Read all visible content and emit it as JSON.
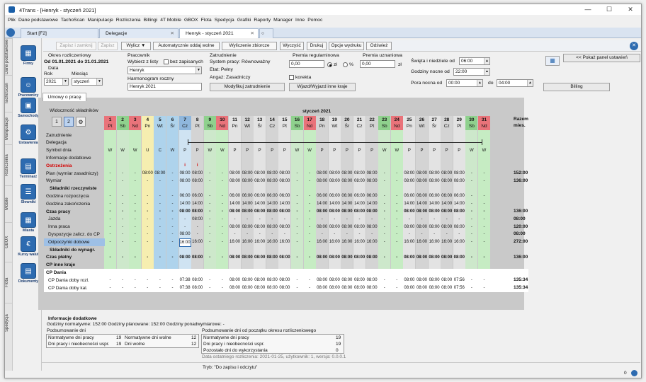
{
  "window": {
    "title": "4Trans - [Henryk - styczeń 2021]"
  },
  "menu": [
    "Plik",
    "Dane podstawowe",
    "TachoScan",
    "Manipulacje",
    "Rozliczenia",
    "Billingi",
    "4T Mobile",
    "GBOX",
    "Flota",
    "Spedycja",
    "Grafiki",
    "Raporty",
    "Manager",
    "Inne",
    "Pomoc"
  ],
  "tabs": [
    "Start [F2]",
    "Delegacje",
    "Henryk - styczeń 2021"
  ],
  "vtabs": [
    "Dane podstawowe",
    "TachoScan",
    "Manipulacje",
    "Rozliczenia",
    "Mobile",
    "GBOX",
    "Flota",
    "Spedycja"
  ],
  "nav": [
    "Firmy",
    "Pracownicy",
    "Samochody",
    "Ustawienia",
    "Terminarz",
    "Słowniki",
    "Miasta",
    "Kursy walut",
    "Dokumenty"
  ],
  "toolbar": {
    "save_close": "Zapisz i zamknij",
    "save": "Zapisz",
    "wylicz": "Wylicz",
    "auto_free": "Automatycznie oddaj wolne",
    "bulk_calc": "Wyliczenie zbiorcze",
    "clear": "Wyczyść",
    "print": "Drukuj",
    "print_opts": "Opcje wydruku",
    "refresh": "Odśwież"
  },
  "header": {
    "okres_title": "Okres rozliczeniowy",
    "okres_range": "Od 01.01.2021  do  31.01.2021",
    "data_label": "Data",
    "rok_label": "Rok",
    "rok_value": "2021",
    "miesiac_label": "Miesiąc",
    "miesiac_value": "styczeń",
    "pracownik_title": "Pracownik",
    "wybierz_label": "Wybierz z listy",
    "bez_zapisanych": "bez zapisanych",
    "pracownik_value": "Henryk",
    "harmonogram_label": "Harmonogram roczny",
    "harmonogram_value": "Henryk     2021",
    "zatr_title": "Zatrudnienie",
    "system_pracy": "System pracy: Równoważny",
    "etat": "Etat: Pełny",
    "angaz": "Angaż: Zasadniczy",
    "modyfikuj": "Modyfikuj zatrudnienie",
    "premia_reg_title": "Premia regulaminowa",
    "premia_reg_value": "0,00",
    "zl1": "zł",
    "pct": "%",
    "premia_uzn_title": "Premia uznaniowa",
    "premia_uzn_value": "0,00",
    "zl2": "zł",
    "korekta": "korekta",
    "wyjazd": "Wjazd/Wyjazd inne kraje",
    "swieta_label": "Święta i niedziele od",
    "swieta_value": "06:00",
    "nocne_label": "Godziny nocne od",
    "nocne_value": "22:00",
    "pora_label": "Pora nocna od",
    "pora_from": "00:00",
    "do_label": "do",
    "pora_to": "04:00",
    "pokaz_panel": "<< Pokaż panel ustawień",
    "billing": "Billing"
  },
  "subtab": "Umowy o pracę",
  "grid": {
    "widocznosc": "Widoczność składników",
    "vis_btn1": "1",
    "vis_btn2": "2",
    "month_label": "styczeń 2021",
    "razem": "Razem",
    "mies": "mies.",
    "days": [
      "1",
      "2",
      "3",
      "4",
      "5",
      "6",
      "7",
      "8",
      "9",
      "10",
      "11",
      "12",
      "13",
      "14",
      "15",
      "16",
      "17",
      "18",
      "19",
      "20",
      "21",
      "22",
      "23",
      "24",
      "25",
      "26",
      "27",
      "28",
      "29",
      "30",
      "31"
    ],
    "dows": [
      "Pt",
      "Sb",
      "Nd",
      "Pn",
      "Wt",
      "Śr",
      "Cz",
      "Pt",
      "Sb",
      "Nd",
      "Pn",
      "Wt",
      "Śr",
      "Cz",
      "Pt",
      "Sb",
      "Nd",
      "Pn",
      "Wt",
      "Śr",
      "Cz",
      "Pt",
      "Sb",
      "Nd",
      "Pn",
      "Wt",
      "Śr",
      "Cz",
      "Pt",
      "Sb",
      "Nd"
    ],
    "rows": [
      {
        "label": "Zatrudnienie",
        "bold": false
      },
      {
        "label": "Delegacja",
        "bold": false
      },
      {
        "label": "Symbol dnia",
        "bold": false,
        "cells": [
          "W",
          "W",
          "W",
          "U",
          "C",
          "W",
          "P",
          "P",
          "W",
          "W",
          "P",
          "P",
          "P",
          "P",
          "P",
          "W",
          "W",
          "P",
          "P",
          "P",
          "P",
          "P",
          "W",
          "W",
          "P",
          "P",
          "P",
          "P",
          "P",
          "W",
          "W"
        ]
      },
      {
        "label": "Informacje dodatkowe",
        "bold": false
      },
      {
        "label": "Ostrzeżenia",
        "bold": true,
        "red": true,
        "cells": [
          "",
          "",
          "",
          "",
          "",
          "",
          "i",
          "i",
          "",
          "",
          "",
          "",
          "",
          "",
          "",
          "",
          "",
          "",
          "",
          "",
          "",
          "",
          "",
          "",
          "",
          "",
          "",
          "",
          "",
          "",
          ""
        ]
      },
      {
        "label": "Plan (wymiar zasadniczy)",
        "bold": false,
        "cells": [
          "-",
          "-",
          "-",
          "08:00",
          "08:00",
          "-",
          "08:00",
          "08:00",
          "-",
          "-",
          "08:00",
          "08:00",
          "08:00",
          "08:00",
          "08:00",
          "-",
          "-",
          "08:00",
          "08:00",
          "08:00",
          "08:00",
          "08:00",
          "-",
          "-",
          "08:00",
          "08:00",
          "08:00",
          "08:00",
          "08:00",
          "-",
          "-"
        ],
        "total": "152:00"
      },
      {
        "label": "Wymiar",
        "bold": false,
        "cells": [
          "-",
          "-",
          "-",
          "-",
          "-",
          "-",
          "08:00",
          "08:00",
          "-",
          "-",
          "08:00",
          "08:00",
          "08:00",
          "08:00",
          "08:00",
          "-",
          "-",
          "08:00",
          "08:00",
          "08:00",
          "08:00",
          "08:00",
          "-",
          "-",
          "08:00",
          "08:00",
          "08:00",
          "08:00",
          "08:00",
          "-",
          "-"
        ],
        "total": "136:00"
      },
      {
        "label": "Składniki rzeczywiste",
        "bold": true,
        "indent": true
      },
      {
        "label": "Godzina rozpoczęcia",
        "bold": false,
        "cells": [
          "-",
          "-",
          "-",
          "-",
          "-",
          "-",
          "06:00",
          "06:00",
          "-",
          "-",
          "06:00",
          "06:00",
          "06:00",
          "06:00",
          "06:00",
          "-",
          "-",
          "06:00",
          "06:00",
          "06:00",
          "06:00",
          "06:00",
          "-",
          "-",
          "06:00",
          "06:00",
          "06:00",
          "06:00",
          "06:00",
          "-",
          "-"
        ]
      },
      {
        "label": "Godzina zakończenia",
        "bold": false,
        "cells": [
          "-",
          "-",
          "-",
          "-",
          "-",
          "-",
          "14:00",
          "14:00",
          "-",
          "-",
          "14:00",
          "14:00",
          "14:00",
          "14:00",
          "14:00",
          "-",
          "-",
          "14:00",
          "14:00",
          "14:00",
          "14:00",
          "14:00",
          "-",
          "-",
          "14:00",
          "14:00",
          "14:00",
          "14:00",
          "14:00",
          "-",
          "-"
        ]
      },
      {
        "label": "Czas pracy",
        "bold": true,
        "cells": [
          "-",
          "-",
          "-",
          "-",
          "-",
          "-",
          "08:00",
          "08:00",
          "-",
          "-",
          "08:00",
          "08:00",
          "08:00",
          "08:00",
          "08:00",
          "-",
          "-",
          "08:00",
          "08:00",
          "08:00",
          "08:00",
          "08:00",
          "-",
          "-",
          "08:00",
          "08:00",
          "08:00",
          "08:00",
          "08:00",
          "-",
          "-"
        ],
        "total": "136:00"
      },
      {
        "label": "Jazda",
        "bold": false,
        "sub": true,
        "cells": [
          "-",
          "-",
          "-",
          "-",
          "-",
          "-",
          "-",
          "08:00",
          "-",
          "-",
          "-",
          "-",
          "-",
          "-",
          "-",
          "-",
          "-",
          "-",
          "-",
          "-",
          "-",
          "-",
          "-",
          "-",
          "-",
          "-",
          "-",
          "-",
          "-",
          "-",
          "-"
        ],
        "total": "08:00"
      },
      {
        "label": "Inna praca",
        "bold": false,
        "sub": true,
        "cells": [
          "-",
          "-",
          "-",
          "-",
          "-",
          "-",
          "-",
          "-",
          "-",
          "-",
          "08:00",
          "08:00",
          "08:00",
          "08:00",
          "08:00",
          "-",
          "-",
          "08:00",
          "08:00",
          "08:00",
          "08:00",
          "08:00",
          "-",
          "-",
          "08:00",
          "08:00",
          "08:00",
          "08:00",
          "08:00",
          "-",
          "-"
        ],
        "total": "120:00"
      },
      {
        "label": "Dyspozycje zalicz. do CP",
        "bold": false,
        "sub": true,
        "cells": [
          "-",
          "-",
          "-",
          "-",
          "-",
          "-",
          "08:00",
          "-",
          "-",
          "-",
          "-",
          "-",
          "-",
          "-",
          "-",
          "-",
          "-",
          "-",
          "-",
          "-",
          "-",
          "-",
          "-",
          "-",
          "-",
          "-",
          "-",
          "-",
          "-",
          "-",
          "-"
        ],
        "total": "08:00"
      },
      {
        "label": "Odpoczynki dobowe",
        "bold": false,
        "sub": true,
        "sel": true,
        "cells": [
          "-",
          "-",
          "-",
          "-",
          "-",
          "-",
          "16:00",
          "16:00",
          "-",
          "-",
          "16:00",
          "16:00",
          "16:00",
          "16:00",
          "16:00",
          "-",
          "-",
          "16:00",
          "16:00",
          "16:00",
          "16:00",
          "16:00",
          "-",
          "-",
          "16:00",
          "16:00",
          "16:00",
          "16:00",
          "16:00",
          "-",
          "-"
        ],
        "total": "272:00"
      },
      {
        "label": "Składniki do wynagr.",
        "bold": true,
        "indent": true
      },
      {
        "label": "Czas płatny",
        "bold": true,
        "cells": [
          "-",
          "-",
          "-",
          "-",
          "-",
          "-",
          "08:00",
          "08:00",
          "-",
          "-",
          "08:00",
          "08:00",
          "08:00",
          "08:00",
          "08:00",
          "-",
          "-",
          "08:00",
          "08:00",
          "08:00",
          "08:00",
          "08:00",
          "-",
          "-",
          "08:00",
          "08:00",
          "08:00",
          "08:00",
          "08:00",
          "-",
          "-"
        ],
        "total": "136:00"
      },
      {
        "label": "CP inne kraje",
        "bold": true
      },
      {
        "label": "CP Dania",
        "bold": true,
        "white": true
      },
      {
        "label": "CP Dania doby rozl.",
        "bold": false,
        "white": true,
        "sub": true,
        "cells": [
          "-",
          "-",
          "-",
          "-",
          "-",
          "-",
          "07:38",
          "08:00",
          "-",
          "-",
          "08:00",
          "08:00",
          "08:00",
          "08:00",
          "08:00",
          "-",
          "-",
          "08:00",
          "08:00",
          "08:00",
          "08:00",
          "08:00",
          "-",
          "-",
          "08:00",
          "08:00",
          "08:00",
          "08:00",
          "07:56",
          "-",
          "-"
        ],
        "total": "135:34"
      },
      {
        "label": "CP Dania doby kal.",
        "bold": false,
        "white": true,
        "sub": true,
        "cells": [
          "-",
          "-",
          "-",
          "-",
          "-",
          "-",
          "07:38",
          "08:00",
          "-",
          "-",
          "08:00",
          "08:00",
          "08:00",
          "08:00",
          "08:00",
          "-",
          "-",
          "08:00",
          "08:00",
          "08:00",
          "08:00",
          "08:00",
          "-",
          "-",
          "08:00",
          "08:00",
          "08:00",
          "08:00",
          "07:56",
          "-",
          "-"
        ],
        "total": "135:34"
      }
    ]
  },
  "summary": {
    "info_title": "Informacje dodatkowe",
    "info_line": "Godziny normatywne: 152:00   Godziny planowane: 152:00     Godziny ponadwymiarowe: -",
    "pods_title": "Podsumowanie dni",
    "pods_rows": [
      {
        "l1": "Normatywne dni pracy",
        "v1": "19",
        "l2": "Normatywne dni wolne",
        "v2": "12"
      },
      {
        "l1": "Dni pracy i nieobecności uspr.",
        "v1": "19",
        "l2": "Dni wolne",
        "v2": "12"
      }
    ],
    "okres_title": "Podsumowanie dni od początku okresu rozliczeniowego",
    "okres_rows": [
      {
        "l": "Normatywne dni pracy",
        "v": "19"
      },
      {
        "l": "Dni pracy i nieobecności uspr.",
        "v": "19"
      },
      {
        "l": "Pozostało dni do wykorzystania",
        "v": "0"
      }
    ],
    "last_calc": "Data ostatniego rozliczenia: 2021-01-25, użytkownik: 1, wersja: 0.0.0.1",
    "tryb": "Tryb: \"Do zapisu i odczytu\"",
    "status_count": "0"
  },
  "colors": {
    "holiday": "#e9737a",
    "weekend": "#8fd18d",
    "alt": "#c6ecc3",
    "yellow": "#f6eeb0",
    "blue": "#aed3ec",
    "sel": "#9ec0e6"
  }
}
